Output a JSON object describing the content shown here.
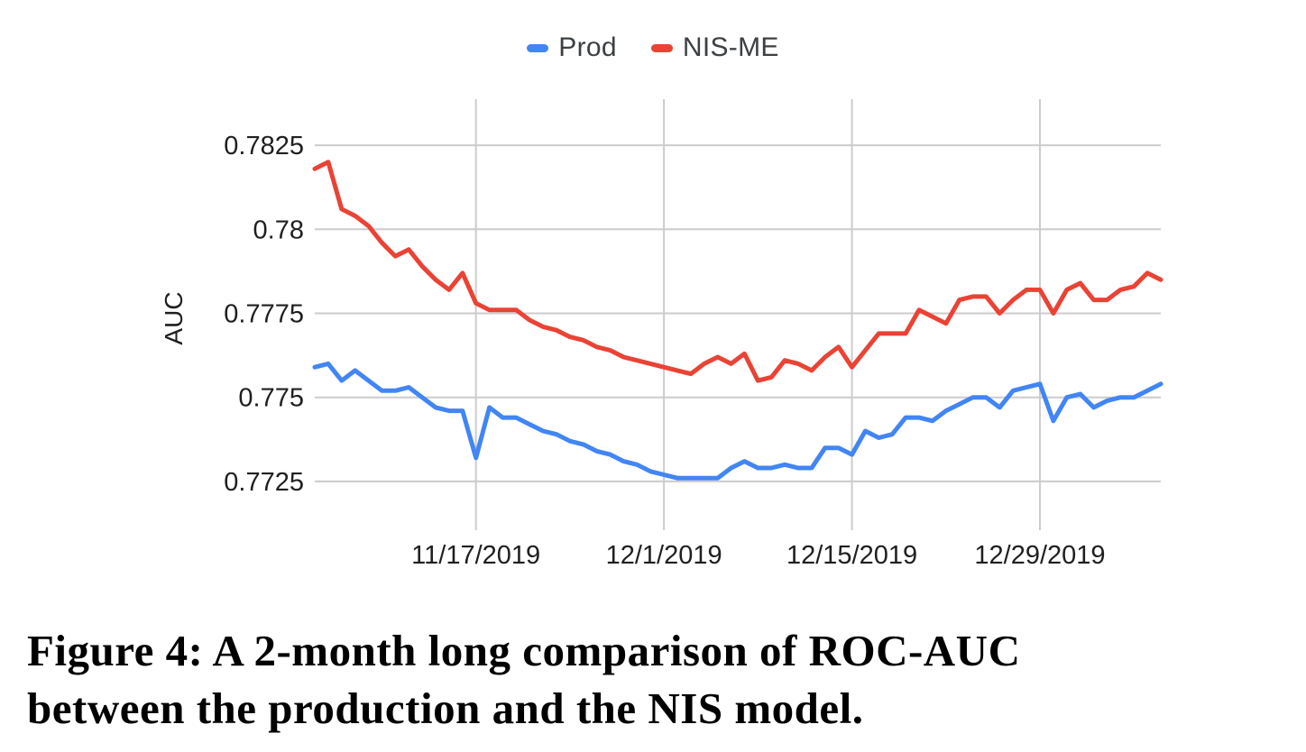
{
  "figure": {
    "caption_lines": [
      "Figure 4: A 2-month long comparison of ROC-AUC",
      "between the production and the NIS model."
    ]
  },
  "chart_data": {
    "type": "line",
    "title": "",
    "xlabel": "",
    "ylabel": "AUC",
    "legend_position": "top",
    "grid": true,
    "ylim": [
      0.77105,
      0.78387
    ],
    "y_ticks": [
      0.7725,
      0.775,
      0.7775,
      0.78,
      0.7825
    ],
    "y_tick_labels": [
      "0.7725",
      "0.775",
      "0.7775",
      "0.78",
      "0.7825"
    ],
    "x_ticks": [
      {
        "label": "11/17/2019",
        "index": 12
      },
      {
        "label": "12/1/2019",
        "index": 26
      },
      {
        "label": "12/15/2019",
        "index": 40
      },
      {
        "label": "12/29/2019",
        "index": 54
      }
    ],
    "x": [
      "11/5/2019",
      "11/6/2019",
      "11/7/2019",
      "11/8/2019",
      "11/9/2019",
      "11/10/2019",
      "11/11/2019",
      "11/12/2019",
      "11/13/2019",
      "11/14/2019",
      "11/15/2019",
      "11/16/2019",
      "11/17/2019",
      "11/18/2019",
      "11/19/2019",
      "11/20/2019",
      "11/21/2019",
      "11/22/2019",
      "11/23/2019",
      "11/24/2019",
      "11/25/2019",
      "11/26/2019",
      "11/27/2019",
      "11/28/2019",
      "11/29/2019",
      "11/30/2019",
      "12/1/2019",
      "12/2/2019",
      "12/3/2019",
      "12/4/2019",
      "12/5/2019",
      "12/6/2019",
      "12/7/2019",
      "12/8/2019",
      "12/9/2019",
      "12/10/2019",
      "12/11/2019",
      "12/12/2019",
      "12/13/2019",
      "12/14/2019",
      "12/15/2019",
      "12/16/2019",
      "12/17/2019",
      "12/18/2019",
      "12/19/2019",
      "12/20/2019",
      "12/21/2019",
      "12/22/2019",
      "12/23/2019",
      "12/24/2019",
      "12/25/2019",
      "12/26/2019",
      "12/27/2019",
      "12/28/2019",
      "12/29/2019",
      "12/30/2019",
      "12/31/2019",
      "1/1/2020",
      "1/2/2020",
      "1/3/2020",
      "1/4/2020",
      "1/5/2020",
      "1/6/2020",
      "1/7/2020"
    ],
    "series": [
      {
        "name": "Prod",
        "color": "#4285F4",
        "values": [
          0.7759,
          0.776,
          0.7755,
          0.7758,
          0.7755,
          0.7752,
          0.7752,
          0.7753,
          0.775,
          0.7747,
          0.7746,
          0.7746,
          0.7732,
          0.7747,
          0.7744,
          0.7744,
          0.7742,
          0.774,
          0.7739,
          0.7737,
          0.7736,
          0.7734,
          0.7733,
          0.7731,
          0.773,
          0.7728,
          0.7727,
          0.7726,
          0.7726,
          0.7726,
          0.7726,
          0.7729,
          0.7731,
          0.7729,
          0.7729,
          0.773,
          0.7729,
          0.7729,
          0.7735,
          0.7735,
          0.7733,
          0.774,
          0.7738,
          0.7739,
          0.7744,
          0.7744,
          0.7743,
          0.7746,
          0.7748,
          0.775,
          0.775,
          0.7747,
          0.7752,
          0.7753,
          0.7754,
          0.7743,
          0.775,
          0.7751,
          0.7747,
          0.7749,
          0.775,
          0.775,
          0.7752,
          0.7754
        ]
      },
      {
        "name": "NIS-ME",
        "color": "#EA4335",
        "values": [
          0.7818,
          0.782,
          0.7806,
          0.7804,
          0.7801,
          0.7796,
          0.7792,
          0.7794,
          0.7789,
          0.7785,
          0.7782,
          0.7787,
          0.7778,
          0.7776,
          0.7776,
          0.7776,
          0.7773,
          0.7771,
          0.777,
          0.7768,
          0.7767,
          0.7765,
          0.7764,
          0.7762,
          0.7761,
          0.776,
          0.7759,
          0.7758,
          0.7757,
          0.776,
          0.7762,
          0.776,
          0.7763,
          0.7755,
          0.7756,
          0.7761,
          0.776,
          0.7758,
          0.7762,
          0.7765,
          0.7759,
          0.7764,
          0.7769,
          0.7769,
          0.7769,
          0.7776,
          0.7774,
          0.7772,
          0.7779,
          0.778,
          0.778,
          0.7775,
          0.7779,
          0.7782,
          0.7782,
          0.7775,
          0.7782,
          0.7784,
          0.7779,
          0.7779,
          0.7782,
          0.7783,
          0.7787,
          0.7785
        ]
      }
    ],
    "grid_color": "#cccccc",
    "tick_label_color": "#1f1f1f",
    "axis_title_color": "#1f1f1f"
  }
}
